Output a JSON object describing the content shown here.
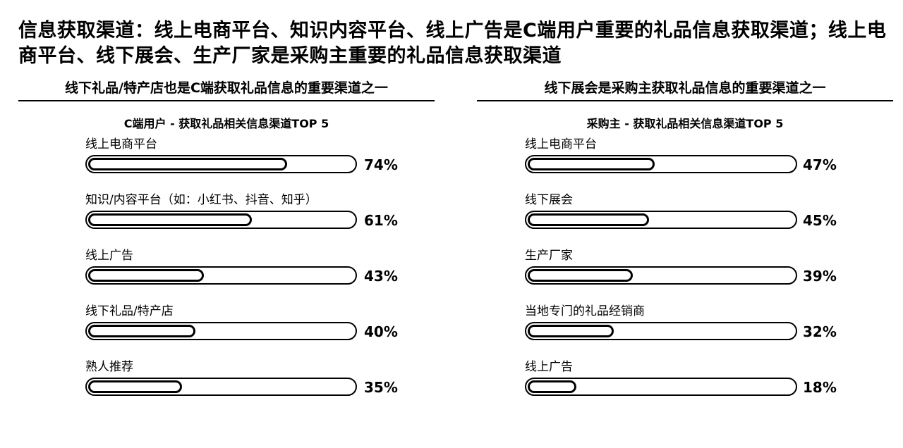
{
  "title": "信息获取渠道：线上电商平台、知识内容平台、线上广告是C端用户重要的礼品信息获取渠道；线上电商平台、线下展会、生产厂家是采购主重要的礼品信息获取渠道",
  "panels": [
    {
      "subtitle": "线下礼品/特产店也是C端获取礼品信息的重要渠道之一",
      "chart_title": "C端用户 - 获取礼品相关信息渠道TOP 5"
    },
    {
      "subtitle": "线下展会是采购主获取礼品信息的重要渠道之一",
      "chart_title": "采购主 - 获取礼品相关信息渠道TOP 5"
    }
  ],
  "chart_data": [
    {
      "type": "bar",
      "title": "C端用户 - 获取礼品相关信息渠道TOP 5",
      "categories": [
        "线上电商平台",
        "知识/内容平台（如：小红书、抖音、知乎）",
        "线上广告",
        "线下礼品/特产店",
        "熟人推荐"
      ],
      "values": [
        74,
        61,
        43,
        40,
        35
      ],
      "value_labels": [
        "74%",
        "61%",
        "43%",
        "40%",
        "35%"
      ],
      "xlim": [
        0,
        100
      ],
      "grid": false
    },
    {
      "type": "bar",
      "title": "采购主 - 获取礼品相关信息渠道TOP 5",
      "categories": [
        "线上电商平台",
        "线下展会",
        "生产厂家",
        "当地专门的礼品经销商",
        "线上广告"
      ],
      "values": [
        47,
        45,
        39,
        32,
        18
      ],
      "value_labels": [
        "47%",
        "45%",
        "39%",
        "32%",
        "18%"
      ],
      "xlim": [
        0,
        100
      ],
      "grid": false
    }
  ]
}
